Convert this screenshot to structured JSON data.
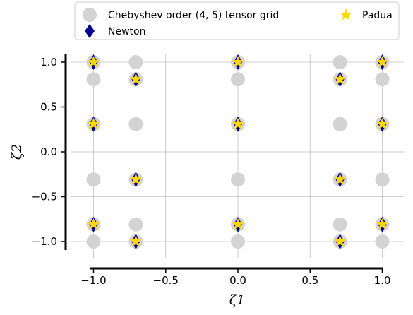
{
  "chart_data": {
    "type": "scatter",
    "title": "",
    "xlabel": "ζ1",
    "ylabel": "ζ2",
    "xlim": [
      -1.05,
      1.05
    ],
    "ylim": [
      -1.12,
      1.12
    ],
    "xticks": [
      -1.0,
      -0.5,
      0.0,
      0.5,
      1.0
    ],
    "yticks": [
      -1.0,
      -0.5,
      0.0,
      0.5,
      1.0
    ],
    "xtick_labels": [
      "−1.0",
      "−0.5",
      "0.0",
      "0.5",
      "1.0"
    ],
    "ytick_labels": [
      "−1.0",
      "−0.5",
      "0.0",
      "0.5",
      "1.0"
    ],
    "grid": true,
    "legend_position": "top",
    "series": [
      {
        "name": "Chebyshev order (4, 5) tensor grid",
        "marker": "circle",
        "color": "#d3d3d3",
        "x": [
          -1,
          -1,
          -1,
          -1,
          -1,
          -1,
          -0.707,
          -0.707,
          -0.707,
          -0.707,
          -0.707,
          -0.707,
          0,
          0,
          0,
          0,
          0,
          0,
          0.707,
          0.707,
          0.707,
          0.707,
          0.707,
          0.707,
          1,
          1,
          1,
          1,
          1,
          1
        ],
        "y": [
          1.0,
          0.809,
          0.309,
          -0.309,
          -0.809,
          -1.0,
          1.0,
          0.809,
          0.309,
          -0.309,
          -0.809,
          -1.0,
          1.0,
          0.809,
          0.309,
          -0.309,
          -0.809,
          -1.0,
          1.0,
          0.809,
          0.309,
          -0.309,
          -0.809,
          -1.0,
          1.0,
          0.809,
          0.309,
          -0.309,
          -0.809,
          -1.0
        ]
      },
      {
        "name": "Newton",
        "marker": "diamond",
        "color": "#00008b",
        "x": [
          -1,
          -1,
          -1,
          -0.707,
          -0.707,
          -0.707,
          0,
          0,
          0,
          0.707,
          0.707,
          0.707,
          1,
          1,
          1
        ],
        "y": [
          1.0,
          0.309,
          -0.809,
          0.809,
          -0.309,
          -1.0,
          1.0,
          0.309,
          -0.809,
          0.809,
          -0.309,
          -1.0,
          1.0,
          0.309,
          -0.809
        ]
      },
      {
        "name": "Padua",
        "marker": "star",
        "color": "#ffd700",
        "x": [
          -1,
          -1,
          -1,
          -0.707,
          -0.707,
          -0.707,
          0,
          0,
          0,
          0.707,
          0.707,
          0.707,
          1,
          1,
          1
        ],
        "y": [
          1.0,
          0.309,
          -0.809,
          0.809,
          -0.309,
          -1.0,
          1.0,
          0.309,
          -0.809,
          0.809,
          -0.309,
          -1.0,
          1.0,
          0.309,
          -0.809
        ]
      }
    ]
  }
}
